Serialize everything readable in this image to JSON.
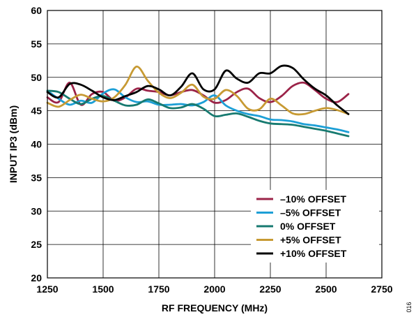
{
  "chart_data": {
    "type": "line",
    "xlabel": "RF FREQUENCY (MHz)",
    "ylabel": "INPUT IP3 (dBm)",
    "xlim": [
      1250,
      2750
    ],
    "ylim": [
      20,
      60
    ],
    "xticks": [
      1250,
      1500,
      1750,
      2000,
      2250,
      2500,
      2750
    ],
    "yticks": [
      20,
      25,
      30,
      35,
      40,
      45,
      50,
      55,
      60
    ],
    "grid": true,
    "legend_position": "bottom-right",
    "figure_code": "016",
    "series": [
      {
        "name": "–10% OFFSET",
        "color": "#9b2348",
        "x": [
          1250,
          1300,
          1350,
          1400,
          1450,
          1500,
          1550,
          1600,
          1650,
          1700,
          1750,
          1800,
          1850,
          1900,
          1950,
          2000,
          2050,
          2100,
          2150,
          2200,
          2250,
          2300,
          2350,
          2400,
          2450,
          2500,
          2550,
          2600
        ],
        "y": [
          47.0,
          46.3,
          49.2,
          45.9,
          47.5,
          47.8,
          46.5,
          47.0,
          48.3,
          48.0,
          47.8,
          47.3,
          47.8,
          48.1,
          47.3,
          46.2,
          46.6,
          47.8,
          48.3,
          46.9,
          46.3,
          47.2,
          48.7,
          49.2,
          48.1,
          46.8,
          46.3,
          47.5
        ]
      },
      {
        "name": "–5% OFFSET",
        "color": "#1d9fd6",
        "x": [
          1250,
          1300,
          1350,
          1400,
          1450,
          1500,
          1550,
          1600,
          1650,
          1700,
          1750,
          1800,
          1850,
          1900,
          1950,
          2000,
          2050,
          2100,
          2150,
          2200,
          2250,
          2300,
          2350,
          2400,
          2450,
          2500,
          2550,
          2600
        ],
        "y": [
          48.0,
          46.8,
          45.9,
          46.5,
          46.2,
          47.6,
          48.2,
          47.0,
          46.3,
          46.4,
          45.9,
          45.9,
          46.0,
          45.8,
          46.3,
          47.3,
          45.8,
          45.0,
          44.5,
          44.2,
          43.7,
          43.6,
          43.4,
          43.0,
          42.8,
          42.5,
          42.2,
          41.8
        ]
      },
      {
        "name": "0% OFFSET",
        "color": "#177a70",
        "x": [
          1250,
          1300,
          1350,
          1400,
          1450,
          1500,
          1550,
          1600,
          1650,
          1700,
          1750,
          1800,
          1850,
          1900,
          1950,
          2000,
          2050,
          2100,
          2150,
          2200,
          2250,
          2300,
          2350,
          2400,
          2450,
          2500,
          2550,
          2600
        ],
        "y": [
          48.0,
          47.8,
          46.8,
          46.0,
          46.8,
          47.2,
          46.5,
          45.8,
          45.9,
          46.7,
          46.1,
          45.4,
          45.5,
          46.0,
          45.3,
          44.2,
          44.4,
          44.6,
          44.1,
          43.5,
          43.1,
          43.0,
          42.9,
          42.6,
          42.3,
          42.0,
          41.6,
          41.2
        ]
      },
      {
        "name": "+5% OFFSET",
        "color": "#c79a33",
        "x": [
          1250,
          1300,
          1350,
          1400,
          1450,
          1500,
          1550,
          1600,
          1650,
          1700,
          1750,
          1800,
          1850,
          1900,
          1950,
          2000,
          2050,
          2100,
          2150,
          2200,
          2250,
          2300,
          2350,
          2400,
          2450,
          2500,
          2550,
          2600
        ],
        "y": [
          46.2,
          45.6,
          46.6,
          47.4,
          46.8,
          46.4,
          47.0,
          48.9,
          51.6,
          49.5,
          47.7,
          46.9,
          47.7,
          48.9,
          47.1,
          46.8,
          48.1,
          47.2,
          45.3,
          45.2,
          46.8,
          45.8,
          44.6,
          44.5,
          45.0,
          45.4,
          45.1,
          44.5
        ]
      },
      {
        "name": "+10% OFFSET",
        "color": "#000000",
        "x": [
          1250,
          1300,
          1350,
          1400,
          1450,
          1500,
          1550,
          1600,
          1650,
          1700,
          1750,
          1800,
          1850,
          1900,
          1950,
          2000,
          2050,
          2100,
          2150,
          2200,
          2250,
          2300,
          2350,
          2400,
          2450,
          2500,
          2550,
          2600
        ],
        "y": [
          47.8,
          47.0,
          49.0,
          48.9,
          48.0,
          47.0,
          46.6,
          47.2,
          47.8,
          48.7,
          48.2,
          47.3,
          48.6,
          50.6,
          48.2,
          48.2,
          51.0,
          49.8,
          49.2,
          50.6,
          50.6,
          51.7,
          51.4,
          49.7,
          48.3,
          47.3,
          45.8,
          44.5
        ]
      }
    ]
  }
}
